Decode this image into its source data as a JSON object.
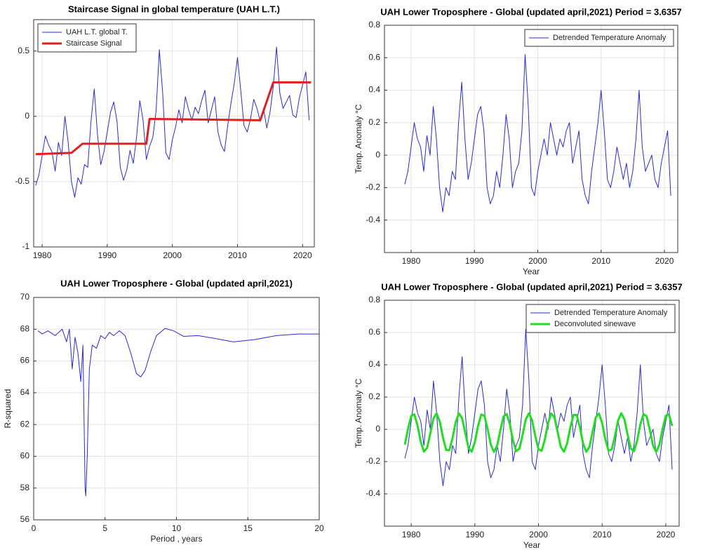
{
  "chart_data": [
    {
      "type": "line",
      "title": "Staircase Signal in global temperature (UAH L.T.)",
      "xlim": [
        1978.7,
        2021.8
      ],
      "ylim": [
        -1,
        0.74
      ],
      "xticks": [
        1980,
        1990,
        2000,
        2010,
        2020
      ],
      "yticks": [
        -1,
        -0.5,
        0,
        0.5
      ],
      "grid": true,
      "legend": "northwest",
      "series": [
        {
          "name": "UAH L.T. global T.",
          "color": "#2a2ad2",
          "x": [
            1979,
            1979.5,
            1980,
            1980.5,
            1981,
            1981.5,
            1982,
            1982.5,
            1983,
            1983.5,
            1984,
            1984.5,
            1985,
            1985.5,
            1986,
            1986.5,
            1987,
            1987.5,
            1988,
            1988.5,
            1989,
            1989.5,
            1990,
            1990.5,
            1991,
            1991.5,
            1992,
            1992.5,
            1993,
            1993.5,
            1994,
            1994.5,
            1995,
            1995.5,
            1996,
            1996.5,
            1997,
            1997.5,
            1998,
            1998.5,
            1999,
            1999.5,
            2000,
            2000.5,
            2001,
            2001.5,
            2002,
            2002.5,
            2003,
            2003.5,
            2004,
            2004.5,
            2005,
            2005.5,
            2006,
            2006.5,
            2007,
            2007.5,
            2008,
            2008.5,
            2009,
            2009.5,
            2010,
            2010.5,
            2011,
            2011.5,
            2012,
            2012.5,
            2013,
            2013.5,
            2014,
            2014.5,
            2015,
            2015.5,
            2016,
            2016.5,
            2017,
            2017.5,
            2018,
            2018.5,
            2019,
            2019.5,
            2020,
            2020.5,
            2021
          ],
          "values": [
            -0.53,
            -0.45,
            -0.3,
            -0.15,
            -0.22,
            -0.27,
            -0.42,
            -0.2,
            -0.3,
            0.0,
            -0.2,
            -0.5,
            -0.62,
            -0.47,
            -0.52,
            -0.37,
            -0.39,
            -0.04,
            0.21,
            -0.14,
            -0.37,
            -0.27,
            -0.12,
            0.03,
            0.11,
            -0.04,
            -0.39,
            -0.49,
            -0.41,
            -0.26,
            -0.36,
            -0.16,
            0.12,
            -0.03,
            -0.33,
            -0.23,
            -0.16,
            0.04,
            0.51,
            0.19,
            -0.28,
            -0.33,
            -0.18,
            -0.08,
            0.05,
            -0.05,
            0.15,
            0.05,
            -0.03,
            0.07,
            0.02,
            0.12,
            0.2,
            -0.05,
            0.05,
            0.15,
            -0.12,
            -0.22,
            -0.27,
            -0.07,
            0.1,
            0.25,
            0.45,
            0.2,
            -0.07,
            -0.12,
            -0.02,
            0.13,
            0.06,
            -0.04,
            0.06,
            -0.09,
            0.03,
            0.23,
            0.53,
            0.18,
            0.06,
            0.11,
            0.16,
            0.01,
            -0.01,
            0.14,
            0.24,
            0.34,
            -0.03
          ],
          "width": 1
        },
        {
          "name": "Staircase Signal",
          "color": "#e02020",
          "x": [
            1979,
            1984.5,
            1986.2,
            1996,
            1996.5,
            2013.5,
            2015.5,
            2021.3
          ],
          "values": [
            -0.29,
            -0.28,
            -0.21,
            -0.21,
            -0.02,
            -0.03,
            0.26,
            0.26
          ],
          "width": 3
        }
      ]
    },
    {
      "type": "line",
      "title": "UAH Lower Troposphere - Global (updated april,2021)  Period = 3.6357",
      "xlabel": "Year",
      "ylabel": "Temp. Anomaly °C",
      "xlim": [
        1975.8,
        2022.1
      ],
      "ylim": [
        -0.6,
        0.8
      ],
      "xticks": [
        1980,
        1990,
        2000,
        2010,
        2020
      ],
      "yticks": [
        -0.4,
        -0.2,
        0,
        0.2,
        0.4,
        0.6,
        0.8
      ],
      "grid": true,
      "legend": "northeast",
      "series": [
        {
          "name": "Detrended Temperature Anomaly",
          "color": "#2a2ad2",
          "x": [
            1979,
            1979.5,
            1980,
            1980.5,
            1981,
            1981.5,
            1982,
            1982.5,
            1983,
            1983.5,
            1984,
            1984.5,
            1985,
            1985.5,
            1986,
            1986.5,
            1987,
            1987.5,
            1988,
            1988.5,
            1989,
            1989.5,
            1990,
            1990.5,
            1991,
            1991.5,
            1992,
            1992.5,
            1993,
            1993.5,
            1994,
            1994.5,
            1995,
            1995.5,
            1996,
            1996.5,
            1997,
            1997.5,
            1998,
            1998.5,
            1999,
            1999.5,
            2000,
            2000.5,
            2001,
            2001.5,
            2002,
            2002.5,
            2003,
            2003.5,
            2004,
            2004.5,
            2005,
            2005.5,
            2006,
            2006.5,
            2007,
            2007.5,
            2008,
            2008.5,
            2009,
            2009.5,
            2010,
            2010.5,
            2011,
            2011.5,
            2012,
            2012.5,
            2013,
            2013.5,
            2014,
            2014.5,
            2015,
            2015.5,
            2016,
            2016.5,
            2017,
            2017.5,
            2018,
            2018.5,
            2019,
            2019.5,
            2020,
            2020.5,
            2021
          ],
          "values": [
            -0.18,
            -0.1,
            0.05,
            0.2,
            0.1,
            0.05,
            -0.1,
            0.12,
            0.0,
            0.3,
            0.1,
            -0.2,
            -0.35,
            -0.2,
            -0.25,
            -0.1,
            -0.15,
            0.2,
            0.45,
            0.1,
            -0.15,
            -0.05,
            0.1,
            0.25,
            0.3,
            0.15,
            -0.2,
            -0.3,
            -0.25,
            -0.1,
            -0.2,
            0.0,
            0.25,
            0.1,
            -0.2,
            -0.1,
            -0.05,
            0.15,
            0.62,
            0.3,
            -0.2,
            -0.25,
            -0.1,
            0.0,
            0.1,
            0.0,
            0.2,
            0.1,
            0.0,
            0.1,
            0.05,
            0.15,
            0.2,
            -0.05,
            0.05,
            0.15,
            -0.15,
            -0.25,
            -0.3,
            -0.1,
            0.05,
            0.2,
            0.4,
            0.15,
            -0.15,
            -0.2,
            -0.1,
            0.05,
            -0.05,
            -0.15,
            -0.05,
            -0.2,
            -0.1,
            0.1,
            0.4,
            0.05,
            -0.1,
            -0.05,
            0.0,
            -0.15,
            -0.2,
            -0.05,
            0.05,
            0.15,
            -0.25
          ],
          "width": 1
        }
      ]
    },
    {
      "type": "line",
      "title": "UAH Lower Troposphere - Global (updated april,2021)",
      "xlabel": "Period , years",
      "ylabel": "R-squared",
      "xlim": [
        0,
        20
      ],
      "ylim": [
        56,
        70
      ],
      "xticks": [
        0,
        5,
        10,
        15,
        20
      ],
      "yticks": [
        56,
        58,
        60,
        62,
        64,
        66,
        68,
        70
      ],
      "grid": true,
      "series": [
        {
          "color": "#2a2ad2",
          "x": [
            0.3,
            0.6,
            1,
            1.5,
            2,
            2.3,
            2.5,
            2.7,
            2.9,
            3.1,
            3.3,
            3.45,
            3.6,
            3.65,
            3.75,
            3.9,
            4.1,
            4.4,
            4.7,
            5,
            5.3,
            5.6,
            6,
            6.4,
            6.8,
            7.2,
            7.5,
            7.8,
            8.2,
            8.6,
            9.2,
            9.8,
            10.5,
            11.5,
            12.5,
            14,
            15.5,
            17,
            18.5,
            20
          ],
          "values": [
            67.9,
            67.7,
            67.9,
            67.6,
            68,
            67.2,
            68,
            65.5,
            67.5,
            66.5,
            64.7,
            67,
            58,
            57.5,
            60,
            65.5,
            67,
            66.8,
            67.6,
            67.4,
            67.8,
            67.6,
            67.9,
            67.6,
            66.5,
            65.2,
            65.0,
            65.4,
            66.6,
            67.6,
            68.05,
            67.9,
            67.55,
            67.6,
            67.45,
            67.2,
            67.35,
            67.6,
            67.7,
            67.7
          ],
          "width": 1
        }
      ]
    },
    {
      "type": "line",
      "title": "UAH Lower Troposphere - Global (updated april,2021)  Period = 3.6357",
      "xlabel": "Year",
      "ylabel": "Temp. Anomaly °C",
      "xlim": [
        1975.8,
        2022.1
      ],
      "ylim": [
        -0.6,
        0.8
      ],
      "xticks": [
        1980,
        1990,
        2000,
        2010,
        2020
      ],
      "yticks": [
        -0.4,
        -0.2,
        0,
        0.2,
        0.4,
        0.6,
        0.8
      ],
      "grid": true,
      "legend": "northeast",
      "series": [
        {
          "name": "Detrended Temperature Anomaly",
          "color": "#2a2ad2",
          "x": [
            1979,
            1979.5,
            1980,
            1980.5,
            1981,
            1981.5,
            1982,
            1982.5,
            1983,
            1983.5,
            1984,
            1984.5,
            1985,
            1985.5,
            1986,
            1986.5,
            1987,
            1987.5,
            1988,
            1988.5,
            1989,
            1989.5,
            1990,
            1990.5,
            1991,
            1991.5,
            1992,
            1992.5,
            1993,
            1993.5,
            1994,
            1994.5,
            1995,
            1995.5,
            1996,
            1996.5,
            1997,
            1997.5,
            1998,
            1998.5,
            1999,
            1999.5,
            2000,
            2000.5,
            2001,
            2001.5,
            2002,
            2002.5,
            2003,
            2003.5,
            2004,
            2004.5,
            2005,
            2005.5,
            2006,
            2006.5,
            2007,
            2007.5,
            2008,
            2008.5,
            2009,
            2009.5,
            2010,
            2010.5,
            2011,
            2011.5,
            2012,
            2012.5,
            2013,
            2013.5,
            2014,
            2014.5,
            2015,
            2015.5,
            2016,
            2016.5,
            2017,
            2017.5,
            2018,
            2018.5,
            2019,
            2019.5,
            2020,
            2020.5,
            2021
          ],
          "values": [
            -0.18,
            -0.1,
            0.05,
            0.2,
            0.1,
            0.05,
            -0.1,
            0.12,
            0.0,
            0.3,
            0.1,
            -0.2,
            -0.35,
            -0.2,
            -0.25,
            -0.1,
            -0.15,
            0.2,
            0.45,
            0.1,
            -0.15,
            -0.05,
            0.1,
            0.25,
            0.3,
            0.15,
            -0.2,
            -0.3,
            -0.25,
            -0.1,
            -0.2,
            0.0,
            0.25,
            0.1,
            -0.2,
            -0.1,
            -0.05,
            0.15,
            0.62,
            0.3,
            -0.2,
            -0.25,
            -0.1,
            0.0,
            0.1,
            0.0,
            0.2,
            0.1,
            0.0,
            0.1,
            0.05,
            0.15,
            0.2,
            -0.05,
            0.05,
            0.15,
            -0.15,
            -0.25,
            -0.3,
            -0.1,
            0.05,
            0.2,
            0.4,
            0.15,
            -0.15,
            -0.2,
            -0.1,
            0.05,
            -0.05,
            -0.15,
            -0.05,
            -0.2,
            -0.1,
            0.1,
            0.4,
            0.05,
            -0.1,
            -0.05,
            0.0,
            -0.15,
            -0.2,
            -0.05,
            0.05,
            0.15,
            -0.25
          ],
          "width": 1
        },
        {
          "name": "Deconvoluted sinewave",
          "color": "#22dd22",
          "x": [
            1979,
            1979.5,
            1980,
            1980.5,
            1981,
            1981.5,
            1982,
            1982.5,
            1983,
            1983.5,
            1984,
            1984.5,
            1985,
            1985.5,
            1986,
            1986.5,
            1987,
            1987.5,
            1988,
            1988.5,
            1989,
            1989.5,
            1990,
            1990.5,
            1991,
            1991.5,
            1992,
            1992.5,
            1993,
            1993.5,
            1994,
            1994.5,
            1995,
            1995.5,
            1996,
            1996.5,
            1997,
            1997.5,
            1998,
            1998.5,
            1999,
            1999.5,
            2000,
            2000.5,
            2001,
            2001.5,
            2002,
            2002.5,
            2003,
            2003.5,
            2004,
            2004.5,
            2005,
            2005.5,
            2006,
            2006.5,
            2007,
            2007.5,
            2008,
            2008.5,
            2009,
            2009.5,
            2010,
            2010.5,
            2011,
            2011.5,
            2012,
            2012.5,
            2013,
            2013.5,
            2014,
            2014.5,
            2015,
            2015.5,
            2016,
            2016.5,
            2017,
            2017.5,
            2018,
            2018.5,
            2019,
            2019.5,
            2020,
            2020.5,
            2021
          ],
          "values": [
            -0.095,
            0.003,
            0.084,
            0.093,
            0.022,
            -0.078,
            -0.138,
            -0.115,
            -0.025,
            0.068,
            0.099,
            0.047,
            -0.052,
            -0.129,
            -0.129,
            -0.053,
            0.046,
            0.099,
            0.069,
            -0.024,
            -0.114,
            -0.138,
            -0.079,
            0.021,
            0.092,
            0.085,
            0.004,
            -0.094,
            -0.14,
            -0.102,
            -0.007,
            0.079,
            0.096,
            0.031,
            -0.07,
            -0.135,
            -0.12,
            -0.035,
            0.061,
            0.1,
            0.055,
            -0.043,
            -0.124,
            -0.133,
            -0.062,
            0.038,
            0.098,
            0.075,
            -0.015,
            -0.108,
            -0.139,
            -0.087,
            0.012,
            0.089,
            0.089,
            0.013,
            -0.086,
            -0.139,
            -0.109,
            -0.016,
            0.074,
            0.098,
            0.039,
            -0.061,
            -0.132,
            -0.125,
            -0.044,
            0.054,
            0.1,
            0.062,
            -0.033,
            -0.119,
            -0.136,
            -0.071,
            0.03,
            0.095,
            0.08,
            -0.005,
            -0.101,
            -0.14,
            -0.095,
            0.003,
            0.084,
            0.093,
            0.022
          ],
          "width": 3
        }
      ]
    }
  ]
}
